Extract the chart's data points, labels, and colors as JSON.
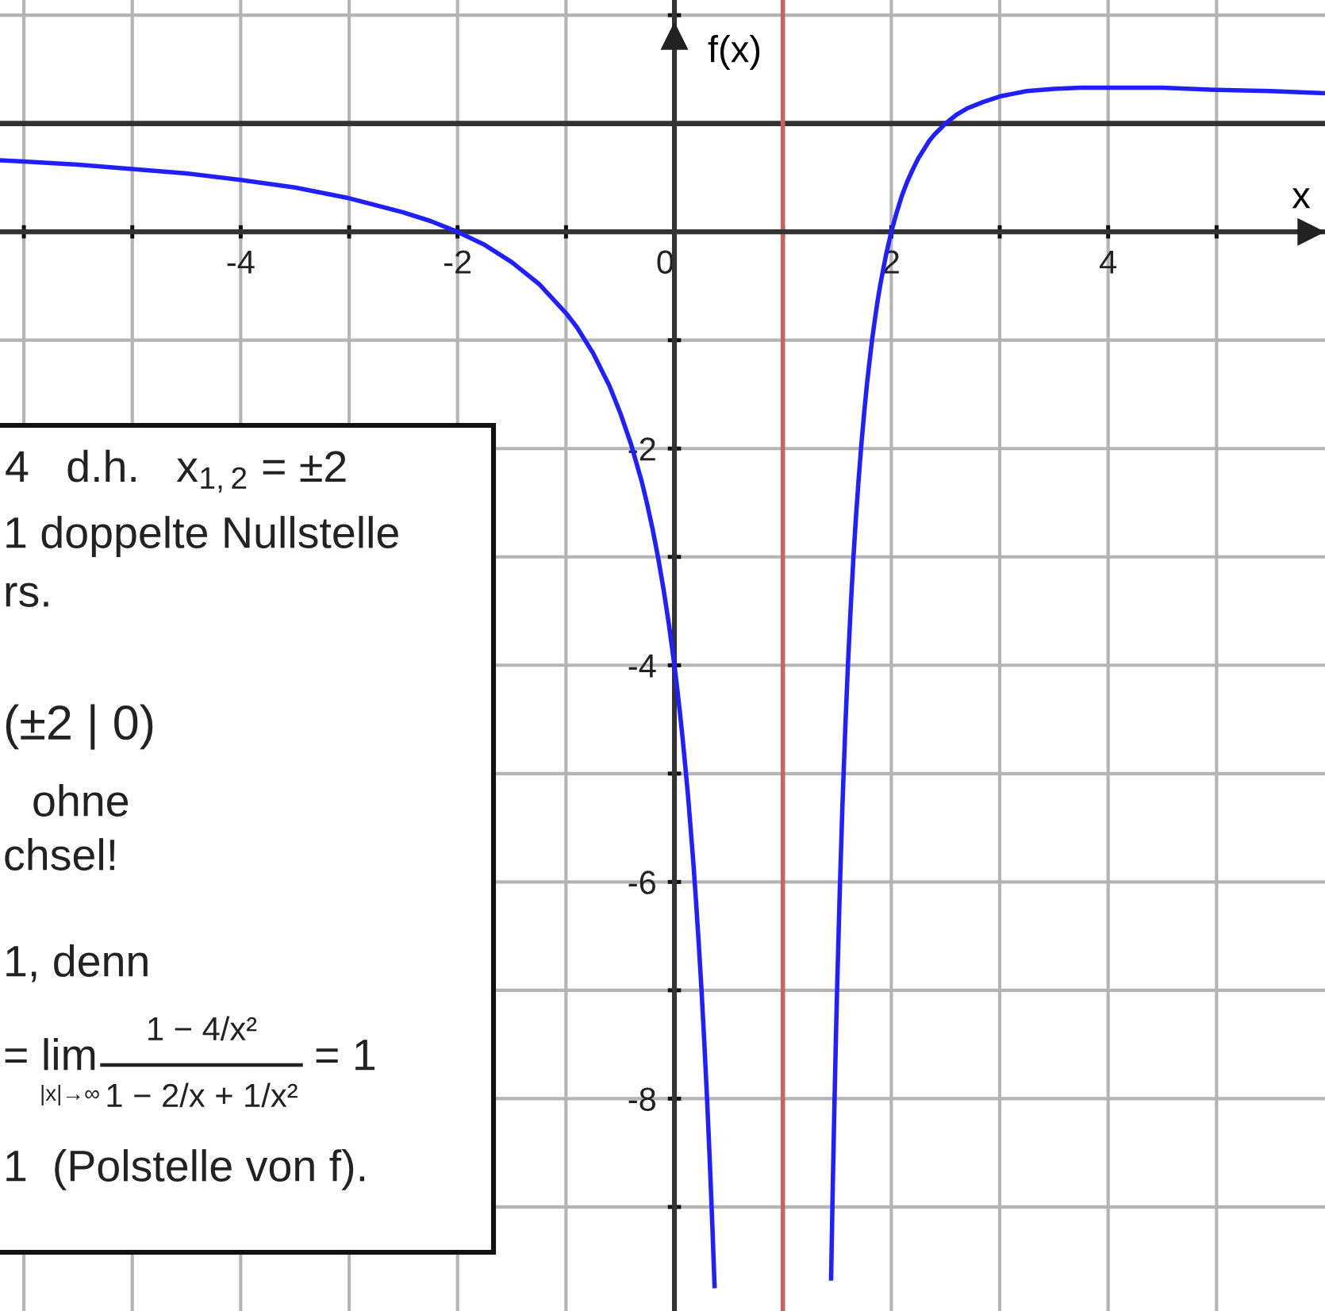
{
  "chart_data": {
    "type": "line",
    "xlabel": "x",
    "ylabel": "f(x)",
    "x": [
      -6.22,
      -6,
      -5.5,
      -5,
      -4.5,
      -4,
      -3.5,
      -3,
      -2.5,
      -2.25,
      -2,
      -1.75,
      -1.5,
      -1.25,
      -1,
      -0.9,
      -0.75,
      -0.6,
      -0.5,
      -0.4,
      -0.3,
      -0.25,
      -0.2,
      -0.15,
      -0.1,
      -0.05,
      0,
      0.025,
      0.05,
      0.075,
      0.1,
      0.125,
      0.15,
      0.175,
      0.2,
      0.225,
      0.25,
      0.275,
      0.3,
      0.325,
      0.35,
      0.37,
      1,
      1.445,
      1.46,
      1.475,
      1.49,
      1.5,
      1.525,
      1.55,
      1.575,
      1.6,
      1.625,
      1.65,
      1.675,
      1.7,
      1.725,
      1.75,
      1.775,
      1.8,
      1.825,
      1.85,
      1.875,
      1.9,
      1.95,
      2,
      2.05,
      2.1,
      2.15,
      2.2,
      2.25,
      2.3,
      2.35,
      2.4,
      2.45,
      2.5,
      2.6,
      2.7,
      2.75,
      2.85,
      3,
      3.25,
      3.5,
      3.75,
      4,
      4.5,
      5,
      5.5,
      6
    ],
    "series": [
      {
        "color": "#1f1fff",
        "values": [
          0.66,
          0.65,
          0.62,
          0.58,
          0.54,
          0.48,
          0.41,
          0.31,
          0.18,
          0.1,
          0,
          -0.12,
          -0.28,
          -0.48,
          -0.75,
          -0.88,
          -1.12,
          -1.42,
          -1.67,
          -1.96,
          -2.31,
          -2.52,
          -2.75,
          -3.01,
          -3.3,
          -3.63,
          -4,
          -4.21,
          -4.43,
          -4.67,
          -4.93,
          -5.2,
          -5.51,
          -5.83,
          -6.19,
          -6.58,
          -7.0,
          -7.47,
          -7.98,
          -8.55,
          -9.18,
          -9.73,
          null,
          -9.66,
          -8.83,
          -8.09,
          -7.41,
          -7,
          -6.08,
          -5.28,
          -4.6,
          -4,
          -3.48,
          -3.02,
          -2.62,
          -2.27,
          -1.95,
          -1.67,
          -1.41,
          -1.19,
          -0.98,
          -0.8,
          -0.63,
          -0.48,
          -0.22,
          0,
          0.18,
          0.34,
          0.47,
          0.58,
          0.68,
          0.76,
          0.84,
          0.9,
          0.95,
          1,
          1.08,
          1.14,
          1.16,
          1.2,
          1.25,
          1.3,
          1.32,
          1.33,
          1.33,
          1.33,
          1.31,
          1.3,
          1.28
        ]
      }
    ],
    "xlim": [
      -6.22,
      6.0
    ],
    "ylim": [
      -9.96,
      2.14
    ],
    "xticks": [
      {
        "value": -6,
        "label": null
      },
      {
        "value": -5,
        "label": null
      },
      -4,
      {
        "value": -3,
        "label": null
      },
      -2,
      {
        "value": -1,
        "label": null
      },
      0,
      {
        "value": 1,
        "label": null
      },
      2,
      {
        "value": 3,
        "label": null
      },
      4,
      {
        "value": 5,
        "label": null
      }
    ],
    "yticks": [
      {
        "value": -9,
        "label": null
      },
      -8,
      {
        "value": -7,
        "label": null
      },
      -6,
      {
        "value": -5,
        "label": null
      },
      -4,
      {
        "value": -3,
        "label": null
      },
      -2,
      {
        "value": -1,
        "label": null
      },
      {
        "value": 0,
        "label": null
      },
      {
        "value": 1,
        "label": null
      },
      {
        "value": 2,
        "label": null
      }
    ],
    "grid": true,
    "line_style": "solid",
    "ref_lines": [
      {
        "axis": "y",
        "value": 1,
        "color": "#333333"
      },
      {
        "axis": "x",
        "value": 1,
        "color": "#c86464"
      }
    ],
    "annotations": [
      "4   d.h.   x$_{1,2}$ = ±2",
      "1 doppelte Nullstelle",
      "rs.",
      "(±2 | 0)",
      "ohne",
      "chsel!",
      "1, denn",
      "= lim",
      "|x|→∞",
      "1 − 4/x²",
      "1 − 2/x + 1/x²",
      "= 1",
      "1  (Polstelle von f)."
    ]
  }
}
